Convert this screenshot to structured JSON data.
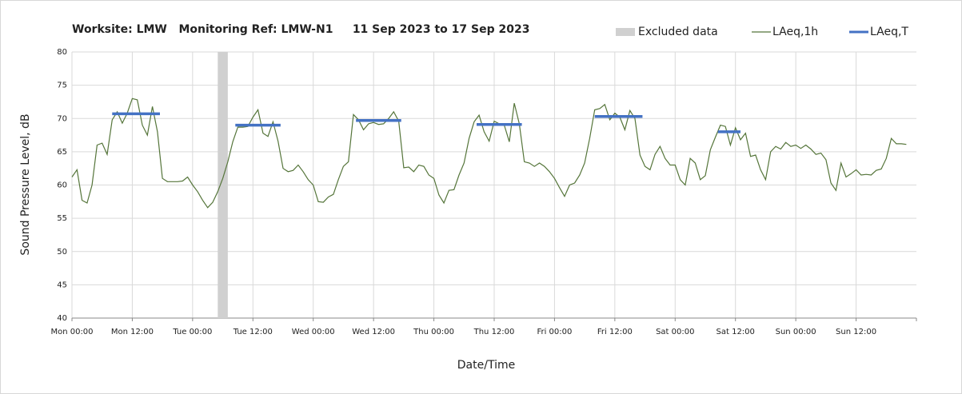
{
  "chart_data": {
    "type": "line",
    "title": "Worksite: LMW   Monitoring Ref: LMW-N1     11 Sep 2023 to 17 Sep 2023",
    "x_label": "Date/Time",
    "y_label": "Sound Pressure Level, dB",
    "xlim": [
      0,
      168
    ],
    "xticks": [
      {
        "value": 0,
        "label": "Mon 00:00"
      },
      {
        "value": 12,
        "label": "Mon 12:00"
      },
      {
        "value": 24,
        "label": "Tue 00:00"
      },
      {
        "value": 36,
        "label": "Tue 12:00"
      },
      {
        "value": 48,
        "label": "Wed 00:00"
      },
      {
        "value": 60,
        "label": "Wed 12:00"
      },
      {
        "value": 72,
        "label": "Thu 00:00"
      },
      {
        "value": 84,
        "label": "Thu 12:00"
      },
      {
        "value": 96,
        "label": "Fri 00:00"
      },
      {
        "value": 108,
        "label": "Fri 12:00"
      },
      {
        "value": 120,
        "label": "Sat 00:00"
      },
      {
        "value": 132,
        "label": "Sat 12:00"
      },
      {
        "value": 144,
        "label": "Sun 00:00"
      },
      {
        "value": 156,
        "label": "Sun 12:00"
      }
    ],
    "ylim": [
      40,
      80
    ],
    "yticks": [
      40,
      45,
      50,
      55,
      60,
      65,
      70,
      75,
      80
    ],
    "grid": true,
    "legend": "top-right",
    "excluded": {
      "name": "Excluded data",
      "color": "#d0d0d0",
      "x": [
        29,
        31
      ]
    },
    "series": [
      {
        "name": "LAeq,1h",
        "color": "#55753a",
        "x": [
          0,
          1,
          2,
          3,
          4,
          5,
          6,
          7,
          8,
          9,
          10,
          11,
          12,
          13,
          14,
          15,
          16,
          17,
          18,
          19,
          20,
          21,
          22,
          23,
          24,
          25,
          26,
          27,
          28,
          29,
          30,
          31,
          32,
          33,
          34,
          35,
          36,
          37,
          38,
          39,
          40,
          41,
          42,
          43,
          44,
          45,
          46,
          47,
          48,
          49,
          50,
          51,
          52,
          53,
          54,
          55,
          56,
          57,
          58,
          59,
          60,
          61,
          62,
          63,
          64,
          65,
          66,
          67,
          68,
          69,
          70,
          71,
          72,
          73,
          74,
          75,
          76,
          77,
          78,
          79,
          80,
          81,
          82,
          83,
          84,
          85,
          86,
          87,
          88,
          89,
          90,
          91,
          92,
          93,
          94,
          95,
          96,
          97,
          98,
          99,
          100,
          101,
          102,
          103,
          104,
          105,
          106,
          107,
          108,
          109,
          110,
          111,
          112,
          113,
          114,
          115,
          116,
          117,
          118,
          119,
          120,
          121,
          122,
          123,
          124,
          125,
          126,
          127,
          128,
          129,
          130,
          131,
          132,
          133,
          134,
          135,
          136,
          137,
          138,
          139,
          140,
          141,
          142,
          143,
          144,
          145,
          146,
          147,
          148,
          149,
          150,
          151,
          152,
          153,
          154,
          155,
          156,
          157,
          158,
          159,
          160,
          161,
          162,
          163,
          164,
          165,
          166
        ],
        "values": [
          61.2,
          62.3,
          57.7,
          57.3,
          60,
          66,
          66.3,
          64.6,
          69.8,
          71,
          69.3,
          70.8,
          73,
          72.8,
          69,
          67.5,
          71.8,
          68,
          61,
          60.5,
          60.5,
          60.5,
          60.6,
          61.2,
          60,
          59,
          57.7,
          56.6,
          57.4,
          59,
          61,
          63.5,
          66.5,
          68.7,
          68.7,
          68.8,
          70.2,
          71.3,
          67.8,
          67.3,
          69.5,
          66.6,
          62.5,
          62,
          62.2,
          63,
          62,
          60.8,
          60,
          57.5,
          57.4,
          58.2,
          58.6,
          60.8,
          62.8,
          63.5,
          70.6,
          69.8,
          68.3,
          69.2,
          69.4,
          69.1,
          69.2,
          70,
          71,
          69.6,
          62.6,
          62.7,
          62,
          63,
          62.8,
          61.5,
          61,
          58.5,
          57.3,
          59.2,
          59.3,
          61.5,
          63.3,
          67,
          69.5,
          70.5,
          68,
          66.6,
          69.6,
          69.2,
          69,
          66.5,
          72.3,
          69.2,
          63.5,
          63.3,
          62.8,
          63.3,
          62.8,
          62,
          61,
          59.6,
          58.3,
          60,
          60.3,
          61.5,
          63.3,
          67,
          71.3,
          71.5,
          72.1,
          69.8,
          70.8,
          70.2,
          68.3,
          71.2,
          70,
          64.5,
          62.8,
          62.3,
          64.6,
          65.8,
          64,
          63,
          63,
          60.8,
          60,
          64,
          63.3,
          60.8,
          61.4,
          65.3,
          67.2,
          69,
          68.8,
          66,
          68.6,
          66.8,
          67.8,
          64.3,
          64.5,
          62.3,
          60.8,
          65,
          65.8,
          65.4,
          66.4,
          65.8,
          66,
          65.5,
          66,
          65.4,
          64.6,
          64.8,
          63.8,
          60.3,
          59.2,
          63.3,
          61.2,
          61.7,
          62.3,
          61.5,
          61.6,
          61.5,
          62.2,
          62.4,
          64,
          67,
          66.2,
          66.2,
          66.1
        ]
      },
      {
        "name": "LAeq,T",
        "color": "#4472c4",
        "segments": [
          {
            "x": [
              8,
              17.5
            ],
            "value": 70.7
          },
          {
            "x": [
              32.5,
              41.5
            ],
            "value": 69
          },
          {
            "x": [
              56.5,
              65.5
            ],
            "value": 69.7
          },
          {
            "x": [
              80.5,
              89.5
            ],
            "value": 69.1
          },
          {
            "x": [
              104,
              113.5
            ],
            "value": 70.3
          },
          {
            "x": [
              128.5,
              133
            ],
            "value": 68
          }
        ]
      }
    ]
  }
}
